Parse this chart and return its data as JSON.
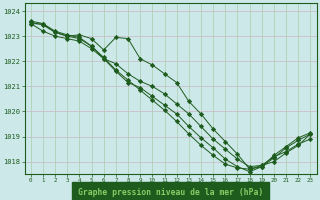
{
  "title": "Graphe pression niveau de la mer (hPa)",
  "bg_color": "#cce8e8",
  "plot_bg_color": "#cce8e8",
  "line_color": "#1e5c1e",
  "grid_color_h": "#c8b8c8",
  "grid_color_v": "#aaccaa",
  "title_bg_color": "#1e5c1e",
  "title_text_color": "#88cc88",
  "xlim": [
    -0.5,
    23.5
  ],
  "ylim": [
    1017.5,
    1024.3
  ],
  "yticks": [
    1018,
    1019,
    1020,
    1021,
    1022,
    1023,
    1024
  ],
  "xticks": [
    0,
    1,
    2,
    3,
    4,
    5,
    6,
    7,
    8,
    9,
    10,
    11,
    12,
    13,
    14,
    15,
    16,
    17,
    18,
    19,
    20,
    21,
    22,
    23
  ],
  "series": [
    [
      1023.5,
      1023.2,
      1023.0,
      1022.9,
      1022.8,
      1022.5,
      1022.1,
      1021.9,
      1021.5,
      1021.2,
      1021.0,
      1020.7,
      1020.3,
      1019.9,
      1019.4,
      1018.9,
      1018.5,
      1018.1,
      1017.8,
      1017.85,
      1018.2,
      1018.4,
      1018.7,
      1018.9
    ],
    [
      1023.6,
      1023.5,
      1023.2,
      1023.05,
      1022.95,
      1022.6,
      1022.1,
      1021.6,
      1021.15,
      1020.95,
      1020.6,
      1020.25,
      1019.9,
      1019.4,
      1018.95,
      1018.55,
      1018.1,
      1017.8,
      1017.6,
      1017.8,
      1018.25,
      1018.6,
      1018.95,
      1019.15
    ],
    [
      1023.55,
      1023.45,
      1023.15,
      1023.0,
      1023.05,
      1022.9,
      1022.45,
      1022.95,
      1022.9,
      1022.1,
      1021.85,
      1021.5,
      1021.15,
      1020.4,
      1019.9,
      1019.3,
      1018.8,
      1018.3,
      1017.7,
      1017.85,
      1018.0,
      1018.35,
      1018.65,
      1019.1
    ],
    [
      1023.5,
      1023.48,
      1023.15,
      1023.0,
      1022.9,
      1022.6,
      1022.15,
      1021.65,
      1021.25,
      1020.85,
      1020.45,
      1020.05,
      1019.6,
      1019.1,
      1018.65,
      1018.25,
      1017.9,
      1017.75,
      1017.7,
      1017.8,
      1018.15,
      1018.55,
      1018.85,
      1019.1
    ]
  ]
}
